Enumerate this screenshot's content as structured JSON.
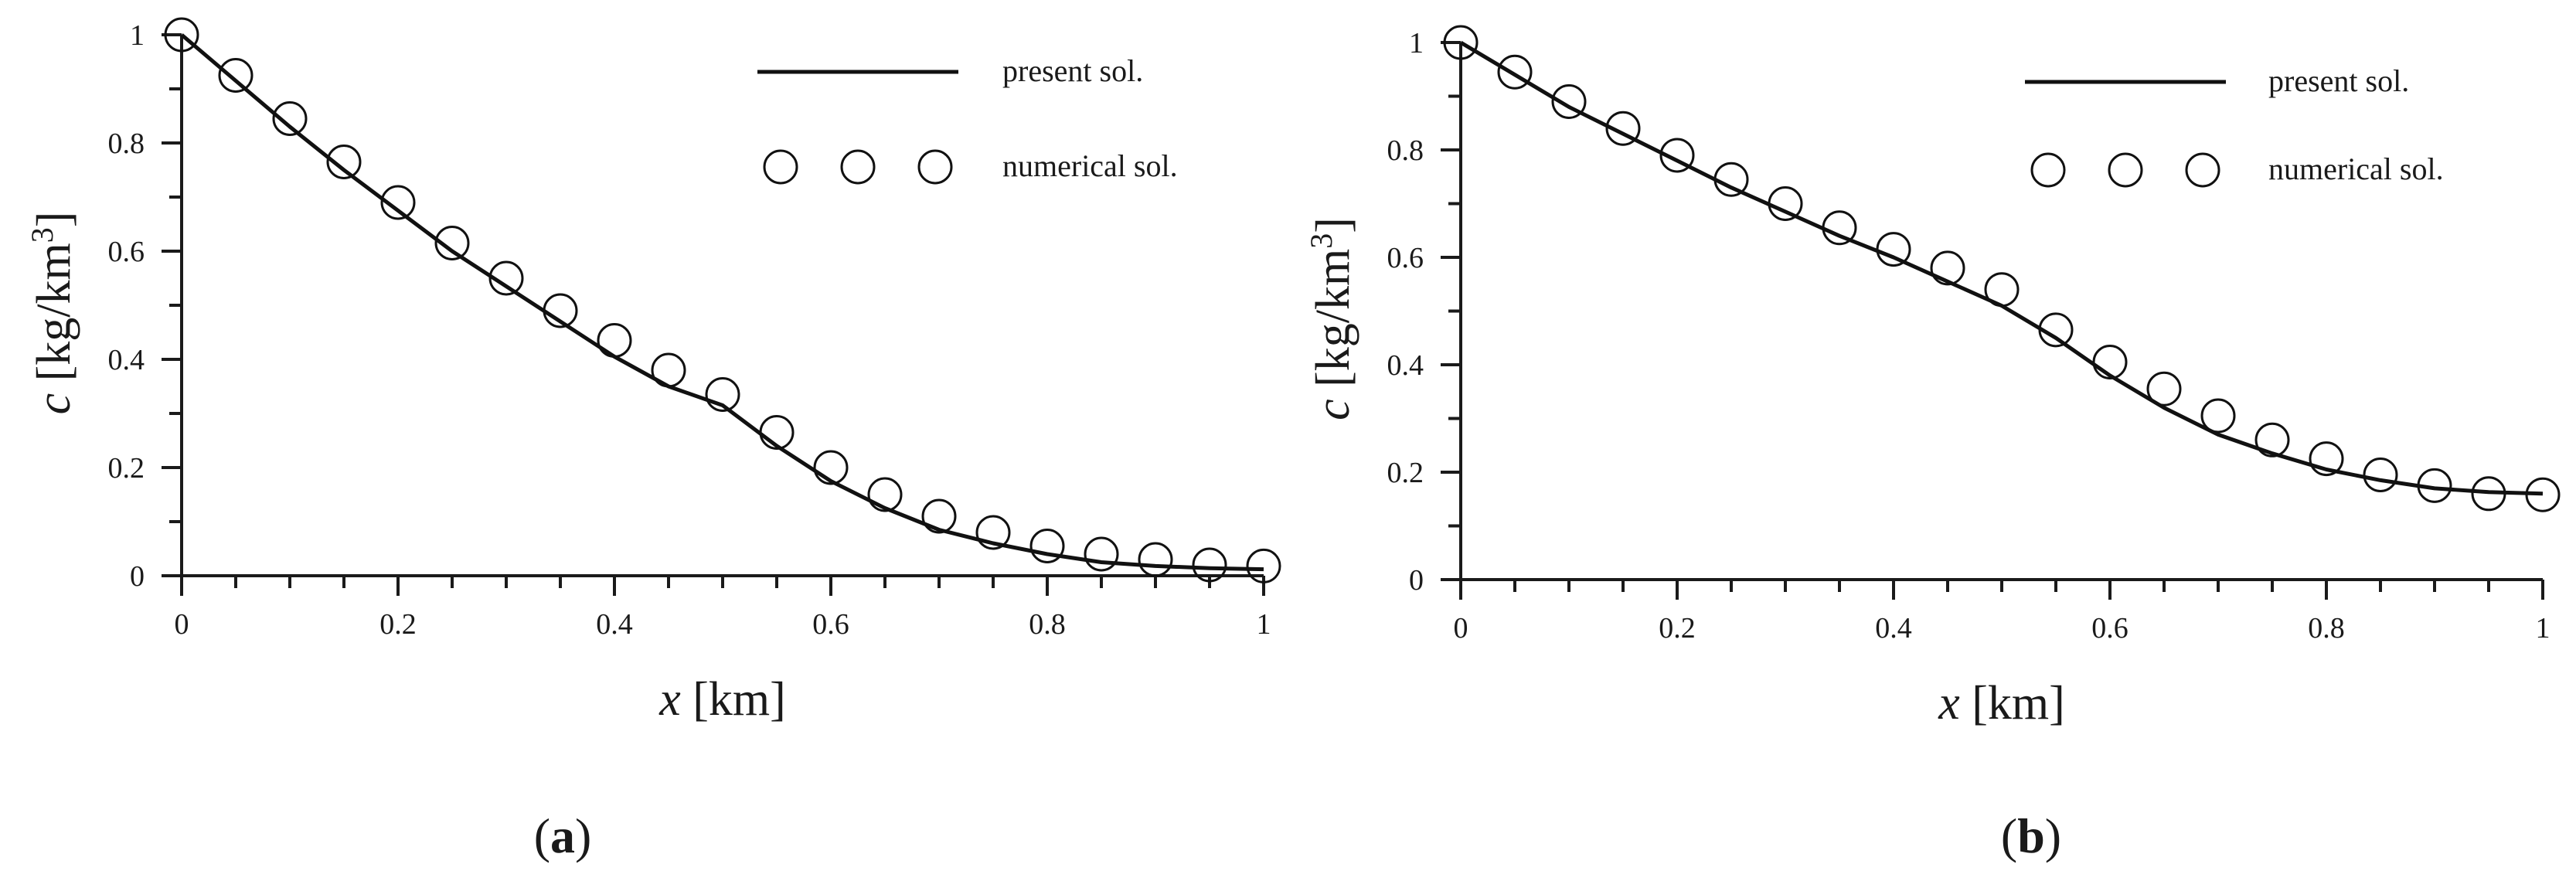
{
  "chart_data": [
    {
      "type": "line",
      "panel_label": "a",
      "xlabel_symbol": "x",
      "xlabel_unit": "[km]",
      "ylabel_symbol": "c",
      "ylabel_unit": "[kg/km",
      "ylabel_unit_power": "3",
      "ylabel_unit_close": "]",
      "xlim": [
        0,
        1
      ],
      "ylim": [
        0,
        1
      ],
      "xticks": [
        0,
        0.2,
        0.4,
        0.6,
        0.8,
        1
      ],
      "yticks": [
        0,
        0.2,
        0.4,
        0.6,
        0.8,
        1
      ],
      "xtick_labels": [
        "0",
        "0.2",
        "0.4",
        "0.6",
        "0.8",
        "1"
      ],
      "ytick_labels": [
        "0",
        "0.2",
        "0.4",
        "0.6",
        "0.8",
        "1"
      ],
      "grid": false,
      "legend_position": "top-right",
      "series": [
        {
          "name": "present sol.",
          "style": "line",
          "x": [
            0,
            0.05,
            0.1,
            0.15,
            0.2,
            0.25,
            0.3,
            0.35,
            0.4,
            0.45,
            0.5,
            0.55,
            0.6,
            0.65,
            0.7,
            0.75,
            0.8,
            0.85,
            0.9,
            0.95,
            1.0
          ],
          "y": [
            1.0,
            0.915,
            0.83,
            0.75,
            0.675,
            0.6,
            0.535,
            0.47,
            0.405,
            0.35,
            0.315,
            0.24,
            0.175,
            0.125,
            0.085,
            0.06,
            0.04,
            0.025,
            0.018,
            0.014,
            0.012
          ]
        },
        {
          "name": "numerical sol.",
          "style": "markers",
          "x": [
            0,
            0.05,
            0.1,
            0.15,
            0.2,
            0.25,
            0.3,
            0.35,
            0.4,
            0.45,
            0.5,
            0.55,
            0.6,
            0.65,
            0.7,
            0.75,
            0.8,
            0.85,
            0.9,
            0.95,
            1.0
          ],
          "y": [
            1.0,
            0.925,
            0.845,
            0.765,
            0.69,
            0.615,
            0.55,
            0.49,
            0.435,
            0.38,
            0.335,
            0.265,
            0.2,
            0.15,
            0.11,
            0.08,
            0.055,
            0.04,
            0.03,
            0.02,
            0.018
          ]
        }
      ]
    },
    {
      "type": "line",
      "panel_label": "b",
      "xlabel_symbol": "x",
      "xlabel_unit": "[km]",
      "ylabel_symbol": "c",
      "ylabel_unit": "[kg/km",
      "ylabel_unit_power": "3",
      "ylabel_unit_close": "]",
      "xlim": [
        0,
        1
      ],
      "ylim": [
        0,
        1
      ],
      "xticks": [
        0,
        0.2,
        0.4,
        0.6,
        0.8,
        1
      ],
      "yticks": [
        0,
        0.2,
        0.4,
        0.6,
        0.8,
        1
      ],
      "xtick_labels": [
        "0",
        "0.2",
        "0.4",
        "0.6",
        "0.8",
        "1"
      ],
      "ytick_labels": [
        "0",
        "0.2",
        "0.4",
        "0.6",
        "0.8",
        "1"
      ],
      "grid": false,
      "legend_position": "top-right",
      "series": [
        {
          "name": "present sol.",
          "style": "line",
          "x": [
            0,
            0.05,
            0.1,
            0.15,
            0.2,
            0.25,
            0.3,
            0.35,
            0.4,
            0.45,
            0.5,
            0.55,
            0.6,
            0.65,
            0.7,
            0.75,
            0.8,
            0.85,
            0.9,
            0.95,
            1.0
          ],
          "y": [
            1.0,
            0.94,
            0.88,
            0.83,
            0.78,
            0.73,
            0.685,
            0.64,
            0.6,
            0.555,
            0.51,
            0.45,
            0.38,
            0.32,
            0.27,
            0.235,
            0.205,
            0.185,
            0.17,
            0.163,
            0.16
          ]
        },
        {
          "name": "numerical sol.",
          "style": "markers",
          "x": [
            0,
            0.05,
            0.1,
            0.15,
            0.2,
            0.25,
            0.3,
            0.35,
            0.4,
            0.45,
            0.5,
            0.55,
            0.6,
            0.65,
            0.7,
            0.75,
            0.8,
            0.85,
            0.9,
            0.95,
            1.0
          ],
          "y": [
            1.0,
            0.945,
            0.89,
            0.84,
            0.79,
            0.745,
            0.7,
            0.655,
            0.615,
            0.58,
            0.54,
            0.465,
            0.405,
            0.355,
            0.305,
            0.26,
            0.225,
            0.195,
            0.175,
            0.16,
            0.158
          ]
        }
      ]
    }
  ]
}
